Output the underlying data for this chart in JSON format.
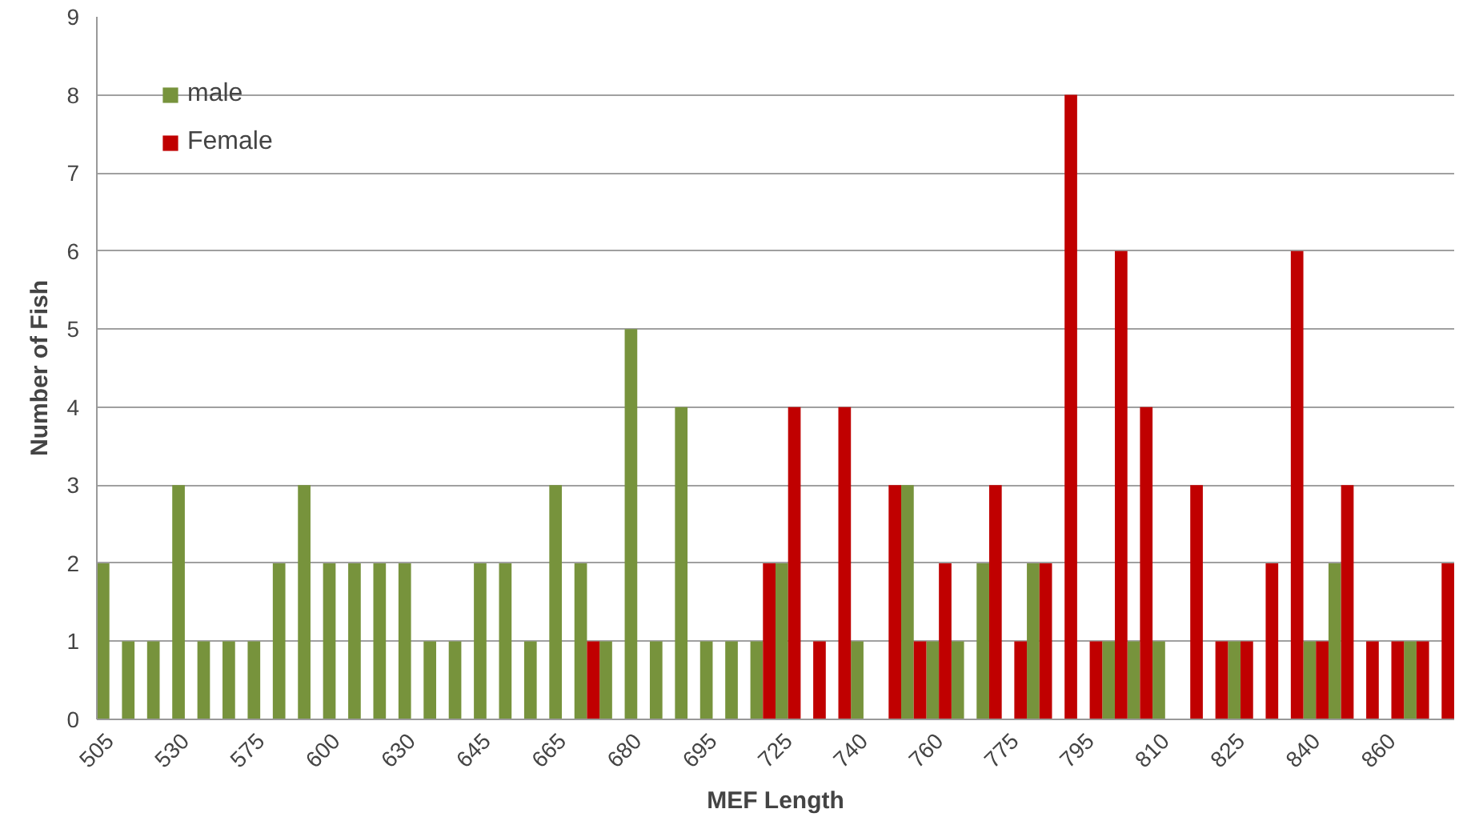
{
  "chart_data": {
    "type": "bar",
    "xlabel": "MEF Length",
    "ylabel": "Number of Fish",
    "categories": [
      "505",
      null,
      null,
      "530",
      null,
      null,
      "575",
      null,
      null,
      "600",
      null,
      null,
      "630",
      null,
      null,
      "645",
      null,
      null,
      "665",
      null,
      null,
      "680",
      null,
      null,
      "695",
      null,
      null,
      "725",
      null,
      null,
      "740",
      null,
      null,
      "760",
      null,
      null,
      "775",
      null,
      null,
      "795",
      null,
      null,
      "810",
      null,
      null,
      "825",
      null,
      null,
      "840",
      null,
      null,
      "860",
      null,
      null
    ],
    "series": [
      {
        "name": "male",
        "color": "#77933c",
        "values": [
          2,
          1,
          1,
          3,
          1,
          1,
          1,
          2,
          3,
          2,
          2,
          2,
          2,
          1,
          1,
          2,
          2,
          1,
          3,
          2,
          1,
          5,
          1,
          4,
          1,
          1,
          1,
          2,
          null,
          null,
          1,
          null,
          3,
          1,
          1,
          2,
          null,
          2,
          null,
          null,
          1,
          1,
          1,
          null,
          null,
          1,
          null,
          null,
          1,
          2,
          null,
          null,
          1,
          null
        ]
      },
      {
        "name": "Female",
        "color": "#c00000",
        "values": [
          null,
          null,
          null,
          null,
          null,
          null,
          null,
          null,
          null,
          null,
          null,
          null,
          null,
          null,
          null,
          null,
          null,
          null,
          null,
          1,
          null,
          null,
          null,
          null,
          null,
          null,
          2,
          4,
          1,
          4,
          null,
          3,
          1,
          2,
          null,
          3,
          1,
          2,
          8,
          1,
          6,
          4,
          null,
          3,
          1,
          1,
          2,
          6,
          1,
          3,
          1,
          1,
          1,
          2
        ]
      }
    ],
    "ylim": [
      0,
      9
    ],
    "yticks": [
      0,
      1,
      2,
      3,
      4,
      5,
      6,
      7,
      8,
      9
    ],
    "grid": "y",
    "legend": "top left"
  }
}
